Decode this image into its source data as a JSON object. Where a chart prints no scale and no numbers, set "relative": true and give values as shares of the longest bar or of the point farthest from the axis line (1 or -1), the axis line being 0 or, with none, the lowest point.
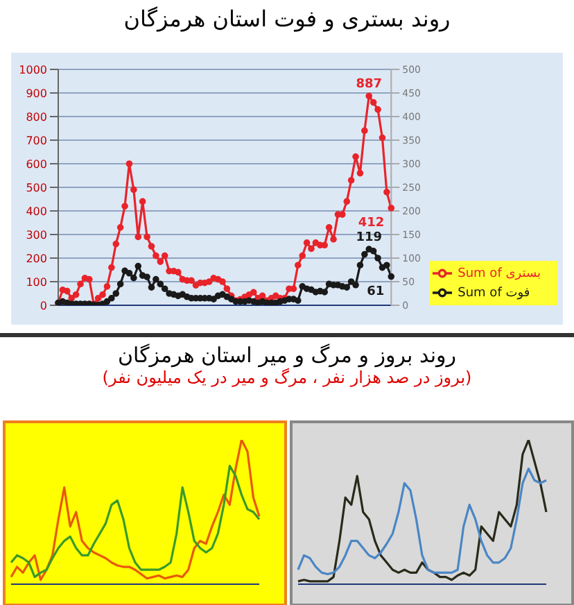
{
  "chart_data": [
    {
      "type": "line",
      "title": "روند بستری و فوت استان هرمزگان",
      "categories": [
        null,
        null,
        null,
        null,
        null,
        null,
        null,
        null,
        null,
        null,
        null,
        null,
        null,
        null,
        null,
        null,
        null,
        null,
        null,
        null,
        null,
        null,
        null,
        null,
        null,
        null,
        null,
        null,
        null,
        null,
        null,
        null,
        null,
        null,
        null,
        null,
        null,
        null,
        null,
        null,
        null,
        null,
        null,
        null,
        null,
        null,
        null,
        null,
        null,
        null,
        null,
        null,
        null,
        null,
        null,
        null,
        null,
        null,
        null,
        null,
        null,
        null,
        null,
        null,
        null,
        null,
        null,
        null,
        null,
        null,
        null,
        null,
        null,
        null,
        null,
        null
      ],
      "series": [
        {
          "name": "Sum of بستری",
          "color": "#e8242a",
          "values": [
            10,
            65,
            60,
            30,
            45,
            90,
            115,
            110,
            5,
            30,
            45,
            80,
            160,
            260,
            330,
            420,
            600,
            490,
            290,
            440,
            290,
            250,
            210,
            185,
            210,
            145,
            145,
            140,
            110,
            105,
            105,
            85,
            95,
            95,
            100,
            115,
            110,
            100,
            70,
            40,
            20,
            25,
            35,
            45,
            55,
            30,
            40,
            20,
            30,
            40,
            30,
            30,
            70,
            70,
            170,
            210,
            265,
            240,
            265,
            255,
            255,
            330,
            280,
            385,
            385,
            440,
            530,
            630,
            560,
            740,
            887,
            860,
            830,
            710,
            480,
            412
          ],
          "value_labels": [
            null,
            null,
            null,
            null,
            null,
            null,
            null,
            null,
            null,
            null,
            null,
            null,
            null,
            null,
            null,
            null,
            null,
            null,
            null,
            null,
            null,
            null,
            null,
            null,
            null,
            null,
            null,
            null,
            null,
            null,
            null,
            null,
            null,
            null,
            null,
            null,
            null,
            null,
            null,
            null,
            null,
            null,
            null,
            null,
            null,
            null,
            null,
            null,
            null,
            null,
            null,
            null,
            null,
            null,
            null,
            null,
            null,
            null,
            null,
            null,
            null,
            null,
            null,
            null,
            null,
            null,
            null,
            null,
            null,
            null,
            "887",
            null,
            null,
            null,
            null,
            "412"
          ]
        },
        {
          "name": "Sum of فوت",
          "color": "#1a1a1a",
          "axis": "y2",
          "values": [
            5,
            8,
            5,
            3,
            3,
            3,
            3,
            3,
            1,
            1,
            3,
            8,
            15,
            25,
            45,
            73,
            68,
            58,
            83,
            63,
            60,
            38,
            55,
            45,
            35,
            25,
            23,
            20,
            23,
            18,
            15,
            15,
            15,
            15,
            15,
            13,
            20,
            23,
            18,
            13,
            8,
            8,
            8,
            10,
            8,
            5,
            8,
            5,
            5,
            5,
            8,
            10,
            13,
            13,
            10,
            40,
            35,
            33,
            28,
            30,
            28,
            45,
            43,
            43,
            40,
            38,
            50,
            43,
            85,
            108,
            119,
            115,
            100,
            80,
            85,
            61
          ],
          "value_labels": [
            null,
            null,
            null,
            null,
            null,
            null,
            null,
            null,
            null,
            null,
            null,
            null,
            null,
            null,
            null,
            null,
            null,
            null,
            null,
            null,
            null,
            null,
            null,
            null,
            null,
            null,
            null,
            null,
            null,
            null,
            null,
            null,
            null,
            null,
            null,
            null,
            null,
            null,
            null,
            null,
            null,
            null,
            null,
            null,
            null,
            null,
            null,
            null,
            null,
            null,
            null,
            null,
            null,
            null,
            null,
            null,
            null,
            null,
            null,
            null,
            null,
            null,
            null,
            null,
            null,
            null,
            null,
            null,
            null,
            null,
            "119",
            null,
            null,
            null,
            null,
            "61"
          ]
        }
      ],
      "ylim": [
        0,
        1000
      ],
      "yticks": [
        0,
        100,
        200,
        300,
        400,
        500,
        600,
        700,
        800,
        900,
        1000
      ],
      "y2lim": [
        0,
        500
      ],
      "y2ticks": [
        0,
        50,
        100,
        150,
        200,
        250,
        300,
        350,
        400,
        450,
        500
      ],
      "grid": "y",
      "legend": "bottom right",
      "marker": "circle"
    },
    {
      "type": "line",
      "title": "روند بروز و مرگ و میر استان هرمزگان",
      "subtitle": "(بروز در صد هزار نفر ، مرگ و میر در یک میلیون نفر)",
      "relative": true,
      "categories": [
        null,
        null,
        null,
        null,
        null,
        null,
        null,
        null,
        null,
        null,
        null,
        null,
        null,
        null,
        null,
        null,
        null,
        null,
        null,
        null,
        null,
        null,
        null,
        null,
        null,
        null,
        null,
        null,
        null,
        null,
        null,
        null,
        null,
        null,
        null,
        null,
        null,
        null,
        null,
        null,
        null,
        null,
        null
      ],
      "series": [
        {
          "color": "#e8590c",
          "values": [
            0.05,
            0.12,
            0.08,
            0.15,
            0.2,
            0.03,
            0.1,
            0.2,
            0.45,
            0.67,
            0.4,
            0.5,
            0.3,
            0.25,
            0.22,
            0.2,
            0.18,
            0.15,
            0.13,
            0.12,
            0.12,
            0.1,
            0.07,
            0.04,
            0.05,
            0.06,
            0.04,
            0.05,
            0.06,
            0.05,
            0.1,
            0.25,
            0.3,
            0.28,
            0.4,
            0.5,
            0.62,
            0.55,
            0.8,
            1,
            0.92,
            0.6,
            0.47
          ]
        },
        {
          "color": "#3a9a2a",
          "values": [
            0.15,
            0.2,
            0.18,
            0.15,
            0.05,
            0.08,
            0.1,
            0.18,
            0.25,
            0.3,
            0.33,
            0.25,
            0.2,
            0.2,
            0.28,
            0.35,
            0.42,
            0.55,
            0.58,
            0.45,
            0.25,
            0.15,
            0.1,
            0.1,
            0.1,
            0.1,
            0.12,
            0.15,
            0.35,
            0.67,
            0.5,
            0.3,
            0.25,
            0.22,
            0.25,
            0.35,
            0.55,
            0.82,
            0.75,
            0.62,
            0.52,
            0.5,
            0.45
          ]
        }
      ]
    },
    {
      "type": "line",
      "relative": true,
      "categories": [
        null,
        null,
        null,
        null,
        null,
        null,
        null,
        null,
        null,
        null,
        null,
        null,
        null,
        null,
        null,
        null,
        null,
        null,
        null,
        null,
        null,
        null,
        null,
        null,
        null,
        null,
        null,
        null,
        null,
        null,
        null,
        null,
        null,
        null,
        null,
        null,
        null,
        null,
        null,
        null,
        null,
        null,
        null
      ],
      "series": [
        {
          "color": "#2a2a1a",
          "values": [
            0.02,
            0.03,
            0.02,
            0.02,
            0.02,
            0.02,
            0.05,
            0.3,
            0.6,
            0.55,
            0.75,
            0.5,
            0.45,
            0.3,
            0.2,
            0.15,
            0.1,
            0.08,
            0.1,
            0.08,
            0.08,
            0.15,
            0.1,
            0.08,
            0.05,
            0.05,
            0.03,
            0.06,
            0.08,
            0.06,
            0.1,
            0.4,
            0.35,
            0.3,
            0.5,
            0.45,
            0.4,
            0.55,
            0.9,
            1,
            0.85,
            0.7,
            0.5
          ]
        },
        {
          "color": "#4a86c5",
          "values": [
            0.1,
            0.2,
            0.18,
            0.12,
            0.08,
            0.07,
            0.08,
            0.12,
            0.2,
            0.3,
            0.3,
            0.25,
            0.2,
            0.18,
            0.22,
            0.28,
            0.35,
            0.5,
            0.7,
            0.65,
            0.45,
            0.2,
            0.1,
            0.08,
            0.08,
            0.08,
            0.08,
            0.1,
            0.4,
            0.55,
            0.45,
            0.3,
            0.2,
            0.15,
            0.15,
            0.18,
            0.25,
            0.45,
            0.7,
            0.8,
            0.72,
            0.7,
            0.72
          ]
        }
      ]
    }
  ]
}
